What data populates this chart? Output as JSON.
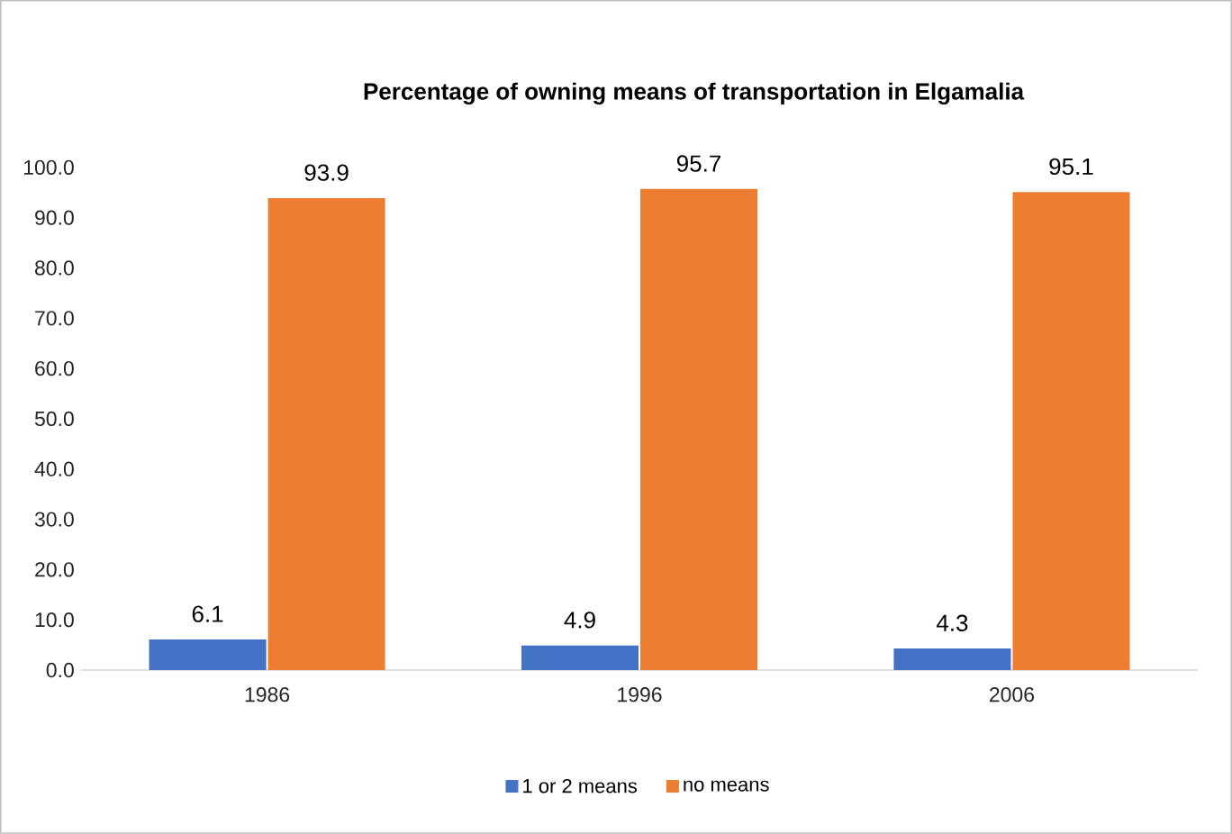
{
  "chart_data": {
    "type": "bar",
    "title": "Percentage of owning means of transportation in Elgamalia",
    "categories": [
      "1986",
      "1996",
      "2006"
    ],
    "series": [
      {
        "name": "1 or 2 means",
        "color": "#4472c4",
        "values": [
          6.1,
          4.9,
          4.3
        ]
      },
      {
        "name": "no means",
        "color": "#ed7d31",
        "values": [
          93.9,
          95.7,
          95.1
        ]
      }
    ],
    "ylim": [
      0,
      100
    ],
    "yticks": [
      {
        "value": 0,
        "label": "0.0"
      },
      {
        "value": 10,
        "label": "10.0"
      },
      {
        "value": 20,
        "label": "20.0"
      },
      {
        "value": 30,
        "label": "30.0"
      },
      {
        "value": 40,
        "label": "40.0"
      },
      {
        "value": 50,
        "label": "50.0"
      },
      {
        "value": 60,
        "label": "60.0"
      },
      {
        "value": 70,
        "label": "70.0"
      },
      {
        "value": 80,
        "label": "80.0"
      },
      {
        "value": 90,
        "label": "90.0"
      },
      {
        "value": 100,
        "label": "100.0"
      }
    ],
    "data_labels": true,
    "legend": "bottom"
  }
}
